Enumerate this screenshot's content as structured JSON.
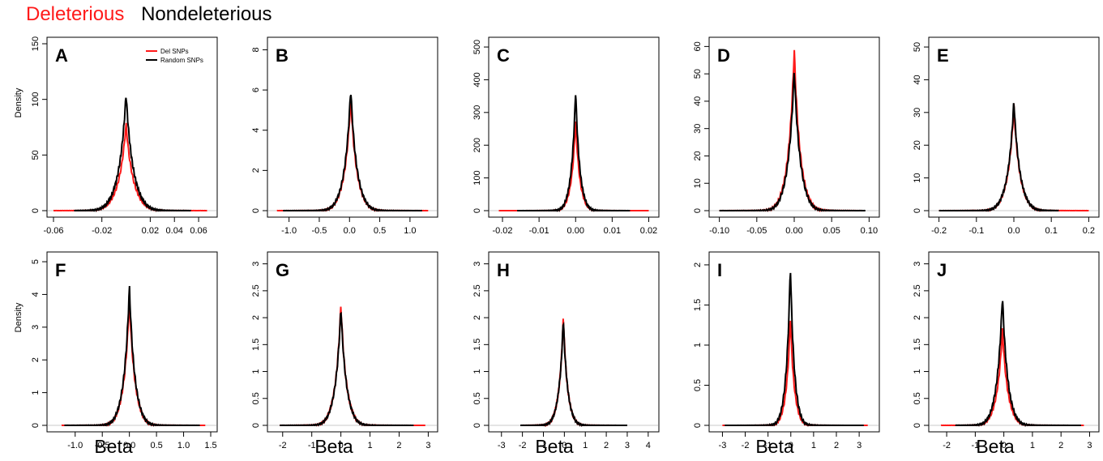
{
  "legend_header": {
    "deleterious": {
      "label": "Deleterious",
      "color": "#ff1a1a"
    },
    "nondeleterious": {
      "label": "Nondeleterious",
      "color": "#000000"
    }
  },
  "bottom_labels": [
    "Beta",
    "Beta",
    "Beta",
    "Beta",
    "Beta"
  ],
  "chart_data": [
    {
      "panel": "A",
      "type": "line",
      "xlim": [
        -0.06,
        0.07
      ],
      "ylim": [
        0,
        150
      ],
      "xticks": [
        -0.06,
        -0.02,
        0.02,
        0.04,
        0.06
      ],
      "xtick_labels": [
        "-0.06",
        "-0.02",
        "0.02",
        "0.04",
        "0.06"
      ],
      "yticks": [
        0,
        50,
        100,
        150
      ],
      "ylabel": "Density",
      "legend": [
        "Del SNPs",
        "Random SNPs"
      ],
      "peak_x": 0.0,
      "del_peak": 78,
      "rand_peak": 105,
      "width": 0.0045,
      "del_range": [
        -0.06,
        0.067
      ],
      "rand_range": [
        -0.043,
        0.054
      ]
    },
    {
      "panel": "B",
      "type": "line",
      "xlim": [
        -1.25,
        1.35
      ],
      "ylim": [
        0,
        8.3
      ],
      "xticks": [
        -1.0,
        -0.5,
        0.0,
        0.5,
        1.0
      ],
      "xtick_labels": [
        "-1.0",
        "-0.5",
        "0.0",
        "0.5",
        "1.0"
      ],
      "yticks": [
        0,
        2,
        4,
        6,
        8
      ],
      "ylabel": "",
      "peak_x": 0.02,
      "del_peak": 5.6,
      "rand_peak": 6.1,
      "width": 0.075,
      "del_range": [
        -1.2,
        1.3
      ],
      "rand_range": [
        -1.1,
        1.2
      ]
    },
    {
      "panel": "C",
      "type": "line",
      "xlim": [
        -0.022,
        0.021
      ],
      "ylim": [
        0,
        510
      ],
      "xticks": [
        -0.02,
        -0.01,
        0.0,
        0.01,
        0.02
      ],
      "xtick_labels": [
        "-0.02",
        "-0.01",
        "0.00",
        "0.01",
        "0.02"
      ],
      "yticks": [
        0,
        100,
        200,
        300,
        400,
        500
      ],
      "ylabel": "",
      "peak_x": 0.0,
      "del_peak": 280,
      "rand_peak": 370,
      "width": 0.00085,
      "del_range": [
        -0.021,
        0.02
      ],
      "rand_range": [
        -0.016,
        0.015
      ]
    },
    {
      "panel": "D",
      "type": "line",
      "xlim": [
        -0.105,
        0.105
      ],
      "ylim": [
        0,
        61
      ],
      "xticks": [
        -0.1,
        -0.05,
        0.0,
        0.05,
        0.1
      ],
      "xtick_labels": [
        "-0.10",
        "-0.05",
        "0.00",
        "0.05",
        "0.10"
      ],
      "yticks": [
        0,
        10,
        20,
        30,
        40,
        50,
        60
      ],
      "ylabel": "",
      "peak_x": 0.0,
      "del_peak": 59,
      "rand_peak": 52,
      "width": 0.006,
      "del_range": [
        -0.1,
        0.09
      ],
      "rand_range": [
        -0.1,
        0.095
      ]
    },
    {
      "panel": "E",
      "type": "line",
      "xlim": [
        -0.21,
        0.21
      ],
      "ylim": [
        0,
        51
      ],
      "xticks": [
        -0.2,
        -0.1,
        0.0,
        0.1,
        0.2
      ],
      "xtick_labels": [
        "-0.2",
        "-0.1",
        "0.0",
        "0.1",
        "0.2"
      ],
      "yticks": [
        0,
        10,
        20,
        30,
        40,
        50
      ],
      "ylabel": "",
      "peak_x": 0.0,
      "del_peak": 32,
      "rand_peak": 33.5,
      "width": 0.012,
      "del_range": [
        -0.2,
        0.2
      ],
      "rand_range": [
        -0.2,
        0.12
      ]
    },
    {
      "panel": "F",
      "type": "line",
      "xlim": [
        -1.4,
        1.5
      ],
      "ylim": [
        0,
        5.1
      ],
      "xticks": [
        -1.0,
        -0.5,
        0.0,
        0.5,
        1.0,
        1.5
      ],
      "xtick_labels": [
        "-1.0",
        "-0.5",
        "0.0",
        "0.5",
        "1.0",
        "1.5"
      ],
      "yticks": [
        0,
        1,
        2,
        3,
        4,
        5
      ],
      "ylabel": "Density",
      "peak_x": 0.0,
      "del_peak": 3.9,
      "rand_peak": 4.25,
      "width": 0.075,
      "del_range": [
        -1.25,
        1.4
      ],
      "rand_range": [
        -1.2,
        1.3
      ]
    },
    {
      "panel": "G",
      "type": "line",
      "xlim": [
        -2.3,
        3.1
      ],
      "ylim": [
        0,
        3.1
      ],
      "xticks": [
        -2,
        -1,
        0,
        1,
        2,
        3
      ],
      "xtick_labels": [
        "-2",
        "-1",
        "0",
        "1",
        "2",
        "3"
      ],
      "yticks": [
        0.0,
        0.5,
        1.0,
        1.5,
        2.0,
        2.5,
        3.0
      ],
      "ylabel": "",
      "peak_x": 0.0,
      "del_peak": 2.25,
      "rand_peak": 2.2,
      "width": 0.14,
      "del_range": [
        -2.1,
        2.9
      ],
      "rand_range": [
        -2.1,
        2.5
      ]
    },
    {
      "panel": "H",
      "type": "line",
      "xlim": [
        -3.3,
        4.2
      ],
      "ylim": [
        0,
        3.1
      ],
      "xticks": [
        -3,
        -2,
        -1,
        0,
        1,
        2,
        3,
        4
      ],
      "xtick_labels": [
        "-3",
        "-2",
        "-1",
        "0",
        "1",
        "2",
        "3",
        "4"
      ],
      "yticks": [
        0.0,
        0.5,
        1.0,
        1.5,
        2.0,
        2.5,
        3.0
      ],
      "ylabel": "",
      "peak_x": -0.05,
      "del_peak": 2.02,
      "rand_peak": 2.0,
      "width": 0.15,
      "del_range": [
        -2.0,
        3.0
      ],
      "rand_range": [
        -2.1,
        3.0
      ]
    },
    {
      "panel": "I",
      "type": "line",
      "xlim": [
        -3.3,
        3.6
      ],
      "ylim": [
        0,
        2.08
      ],
      "xticks": [
        -3,
        -2,
        -1,
        0,
        1,
        2,
        3
      ],
      "xtick_labels": [
        "-3",
        "-2",
        "-1",
        "0",
        "1",
        "2",
        "3"
      ],
      "yticks": [
        0.0,
        0.5,
        1.0,
        1.5,
        2.0
      ],
      "ylabel": "",
      "peak_x": -0.02,
      "del_peak": 1.35,
      "rand_peak": 2.02,
      "width": 0.13,
      "del_range": [
        -3.0,
        3.4
      ],
      "rand_range": [
        -2.9,
        3.2
      ]
    },
    {
      "panel": "J",
      "type": "line",
      "xlim": [
        -2.4,
        3.1
      ],
      "ylim": [
        0,
        3.1
      ],
      "xticks": [
        -2,
        -1,
        0,
        1,
        2,
        3
      ],
      "xtick_labels": [
        "-2",
        "-1",
        "0",
        "1",
        "2",
        "3"
      ],
      "yticks": [
        0.0,
        0.5,
        1.0,
        1.5,
        2.0,
        2.5,
        3.0
      ],
      "ylabel": "",
      "peak_x": -0.05,
      "del_peak": 1.8,
      "rand_peak": 2.42,
      "width": 0.14,
      "del_range": [
        -2.2,
        2.8
      ],
      "rand_range": [
        -1.7,
        2.7
      ]
    }
  ]
}
